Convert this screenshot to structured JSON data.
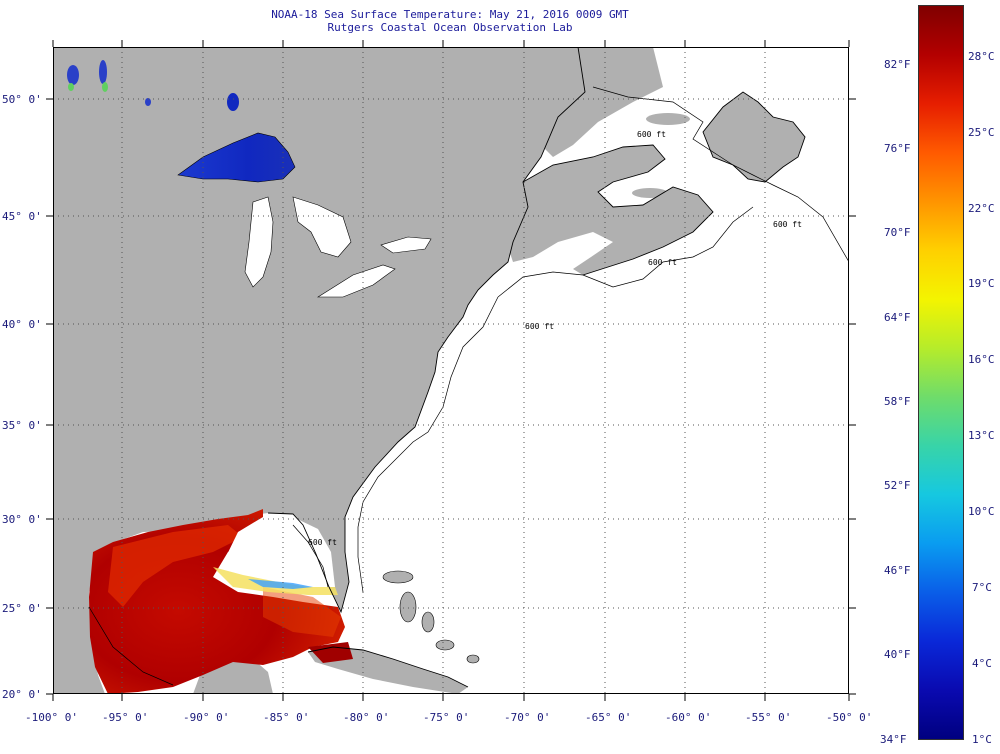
{
  "title": {
    "line1": "NOAA-18 Sea Surface Temperature:  May 21, 2016 0009 GMT",
    "line2": "Rutgers Coastal Ocean Observation Lab"
  },
  "map": {
    "latitude_labels": [
      "50° 0'",
      "45° 0'",
      "40° 0'",
      "35° 0'",
      "30° 0'",
      "25° 0'",
      "20° 0'"
    ],
    "longitude_labels": [
      "-100° 0'",
      "-95° 0'",
      "-90° 0'",
      "-85° 0'",
      "-80° 0'",
      "-75° 0'",
      "-70° 0'",
      "-65° 0'",
      "-60° 0'",
      "-55° 0'",
      "-50° 0'"
    ],
    "isobath_labels": [
      "600 ft",
      "600 ft",
      "600 ft",
      "600 ft",
      "600 ft"
    ],
    "colors": {
      "land": "#b0b0b0",
      "ocean_nodata": "#ffffff",
      "coast": "#000000",
      "grid": "#555555",
      "warm_dark": "#a00000",
      "warm": "#e01e00",
      "cold_lake": "#1028c0"
    }
  },
  "colorbar": {
    "fahrenheit_labels": [
      "82°F",
      "76°F",
      "70°F",
      "64°F",
      "58°F",
      "52°F",
      "46°F",
      "40°F",
      "34°F"
    ],
    "celsius_labels": [
      "28°C",
      "25°C",
      "22°C",
      "19°C",
      "16°C",
      "13°C",
      "10°C",
      "7°C",
      "4°C",
      "1°C"
    ],
    "scale_min_f": 34,
    "scale_max_f": 86,
    "gradient_top_to_bottom": [
      "#800000",
      "#b30000",
      "#e61e00",
      "#ff5a00",
      "#ff9400",
      "#ffd000",
      "#f4f400",
      "#b6ec2a",
      "#6fdc6a",
      "#38d4a8",
      "#16c8e0",
      "#0a9cf0",
      "#0a5ee8",
      "#0a28d8",
      "#0a0ab0",
      "#000080"
    ]
  }
}
